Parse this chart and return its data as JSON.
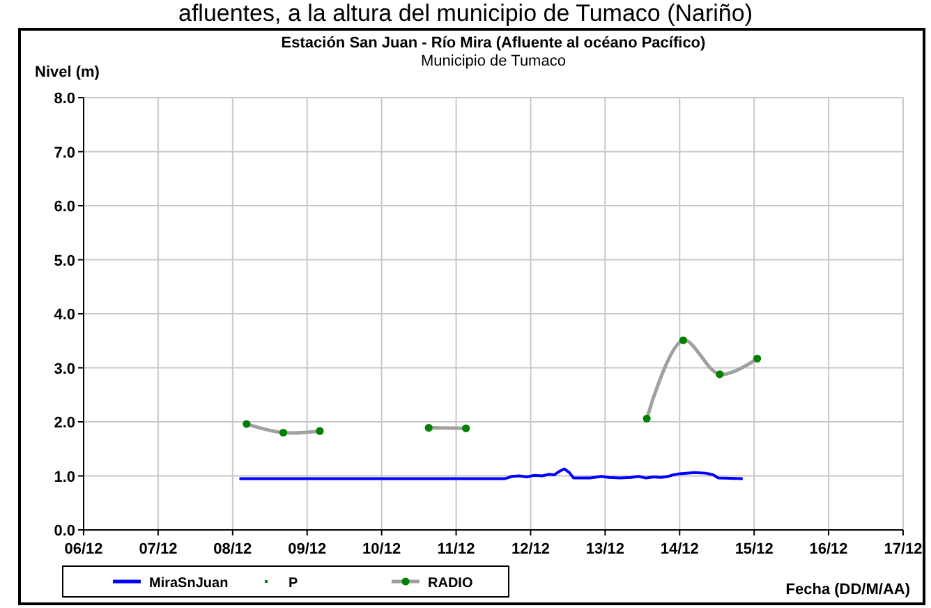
{
  "chart_data": {
    "type": "line",
    "title": "Estación San Juan  - Río Mira (Afluente al océano Pacífico)",
    "subtitle": "Municipio de Tumaco",
    "ylabel": "Nivel (m)",
    "xlabel": "Fecha (DD/M/AA)",
    "annotations": [
      "afluentes, a la altura del municipio de Tumaco (Nariño)"
    ],
    "xlim": [
      "--12-06",
      "--12-17"
    ],
    "xticks": [
      {
        "value": "--12-06",
        "label": "06/12"
      },
      {
        "value": "--12-07",
        "label": "07/12"
      },
      {
        "value": "--12-08",
        "label": "08/12"
      },
      {
        "value": "--12-09",
        "label": "09/12"
      },
      {
        "value": "--12-10",
        "label": "10/12"
      },
      {
        "value": "--12-11",
        "label": "11/12"
      },
      {
        "value": "--12-12",
        "label": "12/12"
      },
      {
        "value": "--12-13",
        "label": "13/12"
      },
      {
        "value": "--12-14",
        "label": "14/12"
      },
      {
        "value": "--12-15",
        "label": "15/12"
      },
      {
        "value": "--12-16",
        "label": "16/12"
      },
      {
        "value": "--12-17",
        "label": "17/12"
      }
    ],
    "ylim": [
      0,
      8
    ],
    "yticks": [
      {
        "value": 0,
        "label": "0.0"
      },
      {
        "value": 1,
        "label": "1.0"
      },
      {
        "value": 2,
        "label": "2.0"
      },
      {
        "value": 3,
        "label": "3.0"
      },
      {
        "value": 4,
        "label": "4.0"
      },
      {
        "value": 5,
        "label": "5.0"
      },
      {
        "value": 6,
        "label": "6.0"
      },
      {
        "value": 7,
        "label": "7.0"
      },
      {
        "value": 8,
        "label": "8.0"
      }
    ],
    "grid": true,
    "legend": "bottom",
    "series": [
      {
        "name": "MiraSnJuan",
        "color": "#0000ff",
        "marker": "none",
        "x": [
          "--12-08T02:10",
          "--12-11T15:50",
          "--12-11T18:00",
          "--12-11T20:20",
          "--12-11T22:50",
          "--12-12T01:10",
          "--12-12T03:40",
          "--12-12T06:00",
          "--12-12T07:40",
          "--12-12T09:10",
          "--12-12T10:50",
          "--12-12T12:30",
          "--12-12T13:50",
          "--12-12T19:10",
          "--12-12T22:50",
          "--12-13T01:10",
          "--12-13T04:50",
          "--12-13T08:20",
          "--12-13T10:50",
          "--12-13T13:10",
          "--12-13T15:40",
          "--12-13T18:00",
          "--12-13T20:20",
          "--12-13T22:05",
          "--12-14T00:00",
          "--12-14T04:50",
          "--12-14T08:20",
          "--12-14T10:50",
          "--12-14T12:30",
          "--12-14T20:20"
        ],
        "values": [
          0.95,
          0.95,
          0.99,
          1.0,
          0.98,
          1.01,
          1.0,
          1.03,
          1.02,
          1.08,
          1.13,
          1.06,
          0.96,
          0.96,
          0.99,
          0.97,
          0.96,
          0.97,
          0.99,
          0.96,
          0.98,
          0.97,
          0.99,
          1.02,
          1.04,
          1.06,
          1.05,
          1.02,
          0.96,
          0.95
        ]
      },
      {
        "name": "P",
        "type": "scatter",
        "color": "#008000",
        "marker": "circle"
      },
      {
        "name": "RADIO",
        "color": "#a0a0a0",
        "marker": "circle",
        "x": [
          "--12-08T04:30",
          "--12-08T16:20",
          "--12-09T04:05",
          "--12-09T21:35",
          "--12-10T15:10",
          "--12-11T03:10",
          "--12-12T07:10",
          "--12-13T13:25",
          "--12-14T01:10",
          "--12-14T12:55",
          "--12-15T01:00"
        ],
        "values": [
          1.96,
          1.8,
          1.83,
          null,
          1.89,
          1.88,
          null,
          2.06,
          3.51,
          2.88,
          3.17
        ]
      }
    ]
  }
}
